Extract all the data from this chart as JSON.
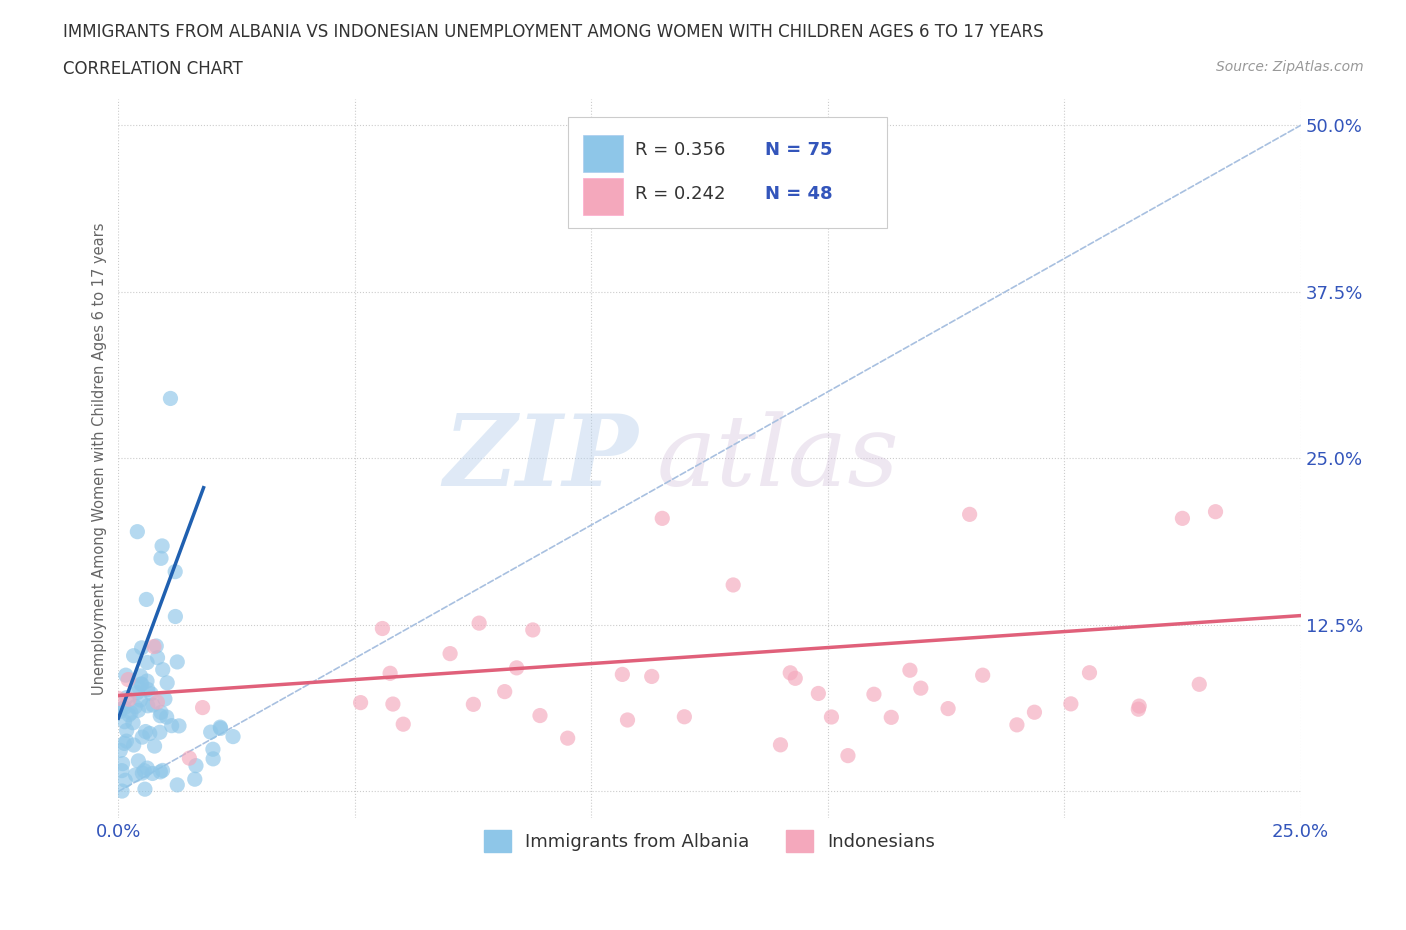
{
  "title_line1": "IMMIGRANTS FROM ALBANIA VS INDONESIAN UNEMPLOYMENT AMONG WOMEN WITH CHILDREN AGES 6 TO 17 YEARS",
  "title_line2": "CORRELATION CHART",
  "source_text": "Source: ZipAtlas.com",
  "ylabel": "Unemployment Among Women with Children Ages 6 to 17 years",
  "xlim": [
    0.0,
    0.25
  ],
  "ylim": [
    -0.02,
    0.52
  ],
  "watermark_zip": "ZIP",
  "watermark_atlas": "atlas",
  "albania_color": "#8ec6e8",
  "indonesia_color": "#f4a8bc",
  "albania_line_color": "#2060b0",
  "indonesia_line_color": "#e0607a",
  "diagonal_color": "#a8c0e0",
  "title_color": "#333333",
  "tick_color": "#3355bb",
  "ylabel_color": "#666666",
  "source_color": "#999999"
}
